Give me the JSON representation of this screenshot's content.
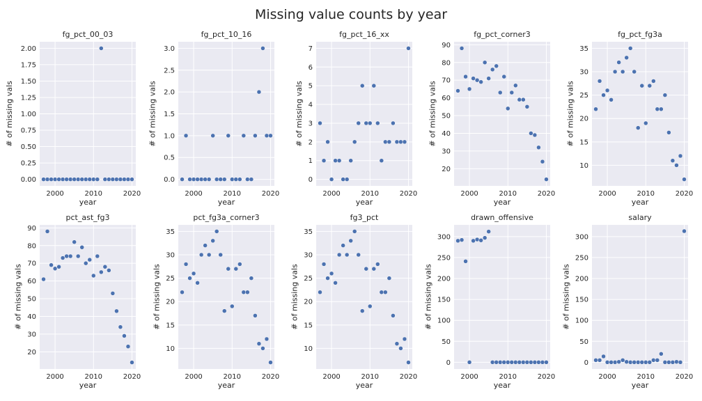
{
  "figure": {
    "title": "Missing value counts by year"
  },
  "chart_data": [
    {
      "type": "scatter",
      "title": "fg_pct_00_03",
      "xlabel": "year",
      "ylabel": "# of missing vals",
      "xlim": [
        1996,
        2021
      ],
      "ylim": [
        -0.1,
        2.1
      ],
      "xticks": [
        {
          "v": 2000,
          "label": "2000"
        },
        {
          "v": 2010,
          "label": "2010"
        },
        {
          "v": 2020,
          "label": "2020"
        }
      ],
      "yticks": [
        {
          "v": 0,
          "label": "0.00"
        },
        {
          "v": 0.25,
          "label": "0.25"
        },
        {
          "v": 0.5,
          "label": "0.50"
        },
        {
          "v": 0.75,
          "label": "0.75"
        },
        {
          "v": 1,
          "label": "1.00"
        },
        {
          "v": 1.25,
          "label": "1.25"
        },
        {
          "v": 1.5,
          "label": "1.50"
        },
        {
          "v": 1.75,
          "label": "1.75"
        },
        {
          "v": 2,
          "label": "2.00"
        }
      ],
      "x": [
        1997,
        1998,
        1999,
        2000,
        2001,
        2002,
        2003,
        2004,
        2005,
        2006,
        2007,
        2008,
        2009,
        2010,
        2011,
        2012,
        2013,
        2014,
        2015,
        2016,
        2017,
        2018,
        2019,
        2020
      ],
      "y": [
        0,
        0,
        0,
        0,
        0,
        0,
        0,
        0,
        0,
        0,
        0,
        0,
        0,
        0,
        0,
        2,
        0,
        0,
        0,
        0,
        0,
        0,
        0,
        0
      ]
    },
    {
      "type": "scatter",
      "title": "fg_pct_10_16",
      "xlabel": "year",
      "ylabel": "# of missing vals",
      "xlim": [
        1996,
        2021
      ],
      "ylim": [
        -0.15,
        3.15
      ],
      "xticks": [
        {
          "v": 2000,
          "label": "2000"
        },
        {
          "v": 2010,
          "label": "2010"
        },
        {
          "v": 2020,
          "label": "2020"
        }
      ],
      "yticks": [
        {
          "v": 0,
          "label": "0.0"
        },
        {
          "v": 0.5,
          "label": "0.5"
        },
        {
          "v": 1,
          "label": "1.0"
        },
        {
          "v": 1.5,
          "label": "1.5"
        },
        {
          "v": 2,
          "label": "2.0"
        },
        {
          "v": 2.5,
          "label": "2.5"
        },
        {
          "v": 3,
          "label": "3.0"
        }
      ],
      "x": [
        1997,
        1998,
        1999,
        2000,
        2001,
        2002,
        2003,
        2004,
        2005,
        2006,
        2007,
        2008,
        2009,
        2010,
        2011,
        2012,
        2013,
        2014,
        2015,
        2016,
        2017,
        2018,
        2019,
        2020
      ],
      "y": [
        0,
        1,
        0,
        0,
        0,
        0,
        0,
        0,
        1,
        0,
        0,
        0,
        1,
        0,
        0,
        0,
        1,
        0,
        0,
        1,
        2,
        3,
        1,
        1
      ]
    },
    {
      "type": "scatter",
      "title": "fg_pct_16_xx",
      "xlabel": "year",
      "ylabel": "# of missing vals",
      "xlim": [
        1996,
        2021
      ],
      "ylim": [
        -0.35,
        7.35
      ],
      "xticks": [
        {
          "v": 2000,
          "label": "2000"
        },
        {
          "v": 2010,
          "label": "2010"
        },
        {
          "v": 2020,
          "label": "2020"
        }
      ],
      "yticks": [
        {
          "v": 0,
          "label": "0"
        },
        {
          "v": 1,
          "label": "1"
        },
        {
          "v": 2,
          "label": "2"
        },
        {
          "v": 3,
          "label": "3"
        },
        {
          "v": 4,
          "label": "4"
        },
        {
          "v": 5,
          "label": "5"
        },
        {
          "v": 6,
          "label": "6"
        },
        {
          "v": 7,
          "label": "7"
        }
      ],
      "x": [
        1997,
        1998,
        1999,
        2000,
        2001,
        2002,
        2003,
        2004,
        2005,
        2006,
        2007,
        2008,
        2009,
        2010,
        2011,
        2012,
        2013,
        2014,
        2015,
        2016,
        2017,
        2018,
        2019,
        2020
      ],
      "y": [
        3,
        1,
        2,
        0,
        1,
        1,
        0,
        0,
        1,
        2,
        3,
        5,
        3,
        3,
        5,
        3,
        1,
        2,
        2,
        3,
        2,
        2,
        2,
        7
      ]
    },
    {
      "type": "scatter",
      "title": "fg_pct_corner3",
      "xlabel": "year",
      "ylabel": "# of missing vals",
      "xlim": [
        1996,
        2021
      ],
      "ylim": [
        10.3,
        91.7
      ],
      "xticks": [
        {
          "v": 2000,
          "label": "2000"
        },
        {
          "v": 2010,
          "label": "2010"
        },
        {
          "v": 2020,
          "label": "2020"
        }
      ],
      "yticks": [
        {
          "v": 20,
          "label": "20"
        },
        {
          "v": 30,
          "label": "30"
        },
        {
          "v": 40,
          "label": "40"
        },
        {
          "v": 50,
          "label": "50"
        },
        {
          "v": 60,
          "label": "60"
        },
        {
          "v": 70,
          "label": "70"
        },
        {
          "v": 80,
          "label": "80"
        },
        {
          "v": 90,
          "label": "90"
        }
      ],
      "x": [
        1997,
        1998,
        1999,
        2000,
        2001,
        2002,
        2003,
        2004,
        2005,
        2006,
        2007,
        2008,
        2009,
        2010,
        2011,
        2012,
        2013,
        2014,
        2015,
        2016,
        2017,
        2018,
        2019,
        2020
      ],
      "y": [
        64,
        88,
        72,
        65,
        71,
        70,
        69,
        80,
        71,
        76,
        78,
        63,
        72,
        54,
        63,
        67,
        59,
        59,
        55,
        40,
        39,
        32,
        24,
        14
      ]
    },
    {
      "type": "scatter",
      "title": "fg_pct_fg3a",
      "xlabel": "year",
      "ylabel": "# of missing vals",
      "xlim": [
        1996,
        2021
      ],
      "ylim": [
        5.6,
        36.4
      ],
      "xticks": [
        {
          "v": 2000,
          "label": "2000"
        },
        {
          "v": 2010,
          "label": "2010"
        },
        {
          "v": 2020,
          "label": "2020"
        }
      ],
      "yticks": [
        {
          "v": 10,
          "label": "10"
        },
        {
          "v": 15,
          "label": "15"
        },
        {
          "v": 20,
          "label": "20"
        },
        {
          "v": 25,
          "label": "25"
        },
        {
          "v": 30,
          "label": "30"
        },
        {
          "v": 35,
          "label": "35"
        }
      ],
      "x": [
        1997,
        1998,
        1999,
        2000,
        2001,
        2002,
        2003,
        2004,
        2005,
        2006,
        2007,
        2008,
        2009,
        2010,
        2011,
        2012,
        2013,
        2014,
        2015,
        2016,
        2017,
        2018,
        2019,
        2020
      ],
      "y": [
        22,
        28,
        25,
        26,
        24,
        30,
        32,
        30,
        33,
        35,
        30,
        18,
        27,
        19,
        27,
        28,
        22,
        22,
        25,
        17,
        11,
        10,
        12,
        7
      ]
    },
    {
      "type": "scatter",
      "title": "pct_ast_fg3",
      "xlabel": "year",
      "ylabel": "# of missing vals",
      "xlim": [
        1996,
        2021
      ],
      "ylim": [
        10.3,
        91.7
      ],
      "xticks": [
        {
          "v": 2000,
          "label": "2000"
        },
        {
          "v": 2010,
          "label": "2010"
        },
        {
          "v": 2020,
          "label": "2020"
        }
      ],
      "yticks": [
        {
          "v": 20,
          "label": "20"
        },
        {
          "v": 30,
          "label": "30"
        },
        {
          "v": 40,
          "label": "40"
        },
        {
          "v": 50,
          "label": "50"
        },
        {
          "v": 60,
          "label": "60"
        },
        {
          "v": 70,
          "label": "70"
        },
        {
          "v": 80,
          "label": "80"
        },
        {
          "v": 90,
          "label": "90"
        }
      ],
      "x": [
        1997,
        1998,
        1999,
        2000,
        2001,
        2002,
        2003,
        2004,
        2005,
        2006,
        2007,
        2008,
        2009,
        2010,
        2011,
        2012,
        2013,
        2014,
        2015,
        2016,
        2017,
        2018,
        2019,
        2020
      ],
      "y": [
        61,
        88,
        69,
        67,
        68,
        73,
        74,
        74,
        82,
        74,
        79,
        70,
        72,
        63,
        74,
        65,
        68,
        66,
        53,
        43,
        34,
        29,
        23,
        14
      ]
    },
    {
      "type": "scatter",
      "title": "pct_fg3a_corner3",
      "xlabel": "year",
      "ylabel": "# of missing vals",
      "xlim": [
        1996,
        2021
      ],
      "ylim": [
        5.6,
        36.4
      ],
      "xticks": [
        {
          "v": 2000,
          "label": "2000"
        },
        {
          "v": 2010,
          "label": "2010"
        },
        {
          "v": 2020,
          "label": "2020"
        }
      ],
      "yticks": [
        {
          "v": 10,
          "label": "10"
        },
        {
          "v": 15,
          "label": "15"
        },
        {
          "v": 20,
          "label": "20"
        },
        {
          "v": 25,
          "label": "25"
        },
        {
          "v": 30,
          "label": "30"
        },
        {
          "v": 35,
          "label": "35"
        }
      ],
      "x": [
        1997,
        1998,
        1999,
        2000,
        2001,
        2002,
        2003,
        2004,
        2005,
        2006,
        2007,
        2008,
        2009,
        2010,
        2011,
        2012,
        2013,
        2014,
        2015,
        2016,
        2017,
        2018,
        2019,
        2020
      ],
      "y": [
        22,
        28,
        25,
        26,
        24,
        30,
        32,
        30,
        33,
        35,
        30,
        18,
        27,
        19,
        27,
        28,
        22,
        22,
        25,
        17,
        11,
        10,
        12,
        7
      ]
    },
    {
      "type": "scatter",
      "title": "fg3_pct",
      "xlabel": "year",
      "ylabel": "# of missing vals",
      "xlim": [
        1996,
        2021
      ],
      "ylim": [
        5.6,
        36.4
      ],
      "xticks": [
        {
          "v": 2000,
          "label": "2000"
        },
        {
          "v": 2010,
          "label": "2010"
        },
        {
          "v": 2020,
          "label": "2020"
        }
      ],
      "yticks": [
        {
          "v": 10,
          "label": "10"
        },
        {
          "v": 15,
          "label": "15"
        },
        {
          "v": 20,
          "label": "20"
        },
        {
          "v": 25,
          "label": "25"
        },
        {
          "v": 30,
          "label": "30"
        },
        {
          "v": 35,
          "label": "35"
        }
      ],
      "x": [
        1997,
        1998,
        1999,
        2000,
        2001,
        2002,
        2003,
        2004,
        2005,
        2006,
        2007,
        2008,
        2009,
        2010,
        2011,
        2012,
        2013,
        2014,
        2015,
        2016,
        2017,
        2018,
        2019,
        2020
      ],
      "y": [
        22,
        28,
        25,
        26,
        24,
        30,
        32,
        30,
        33,
        35,
        30,
        18,
        27,
        19,
        27,
        28,
        22,
        22,
        25,
        17,
        11,
        10,
        12,
        7
      ]
    },
    {
      "type": "scatter",
      "title": "drawn_offensive",
      "xlabel": "year",
      "ylabel": "# of missing vals",
      "xlim": [
        1996,
        2021
      ],
      "ylim": [
        -16,
        328
      ],
      "xticks": [
        {
          "v": 2000,
          "label": "2000"
        },
        {
          "v": 2010,
          "label": "2010"
        },
        {
          "v": 2020,
          "label": "2020"
        }
      ],
      "yticks": [
        {
          "v": 0,
          "label": "0"
        },
        {
          "v": 50,
          "label": "50"
        },
        {
          "v": 100,
          "label": "100"
        },
        {
          "v": 150,
          "label": "150"
        },
        {
          "v": 200,
          "label": "200"
        },
        {
          "v": 250,
          "label": "250"
        },
        {
          "v": 300,
          "label": "300"
        }
      ],
      "x": [
        1997,
        1998,
        1999,
        2000,
        2001,
        2002,
        2003,
        2004,
        2005,
        2006,
        2007,
        2008,
        2009,
        2010,
        2011,
        2012,
        2013,
        2014,
        2015,
        2016,
        2017,
        2018,
        2019,
        2020
      ],
      "y": [
        290,
        292,
        241,
        0,
        290,
        293,
        291,
        297,
        312,
        0,
        0,
        0,
        0,
        0,
        0,
        0,
        0,
        0,
        0,
        0,
        0,
        0,
        0,
        0
      ]
    },
    {
      "type": "scatter",
      "title": "salary",
      "xlabel": "year",
      "ylabel": "# of missing vals",
      "xlim": [
        1996,
        2021
      ],
      "ylim": [
        -16,
        328
      ],
      "xticks": [
        {
          "v": 2000,
          "label": "2000"
        },
        {
          "v": 2010,
          "label": "2010"
        },
        {
          "v": 2020,
          "label": "2020"
        }
      ],
      "yticks": [
        {
          "v": 0,
          "label": "0"
        },
        {
          "v": 50,
          "label": "50"
        },
        {
          "v": 100,
          "label": "100"
        },
        {
          "v": 150,
          "label": "150"
        },
        {
          "v": 200,
          "label": "200"
        },
        {
          "v": 250,
          "label": "250"
        },
        {
          "v": 300,
          "label": "300"
        }
      ],
      "x": [
        1997,
        1998,
        1999,
        2000,
        2001,
        2002,
        2003,
        2004,
        2005,
        2006,
        2007,
        2008,
        2009,
        2010,
        2011,
        2012,
        2013,
        2014,
        2015,
        2016,
        2017,
        2018,
        2019,
        2020
      ],
      "y": [
        5,
        5,
        14,
        0,
        0,
        0,
        1,
        5,
        1,
        0,
        0,
        0,
        0,
        0,
        0,
        5,
        5,
        20,
        0,
        0,
        0,
        1,
        0,
        313
      ]
    }
  ]
}
